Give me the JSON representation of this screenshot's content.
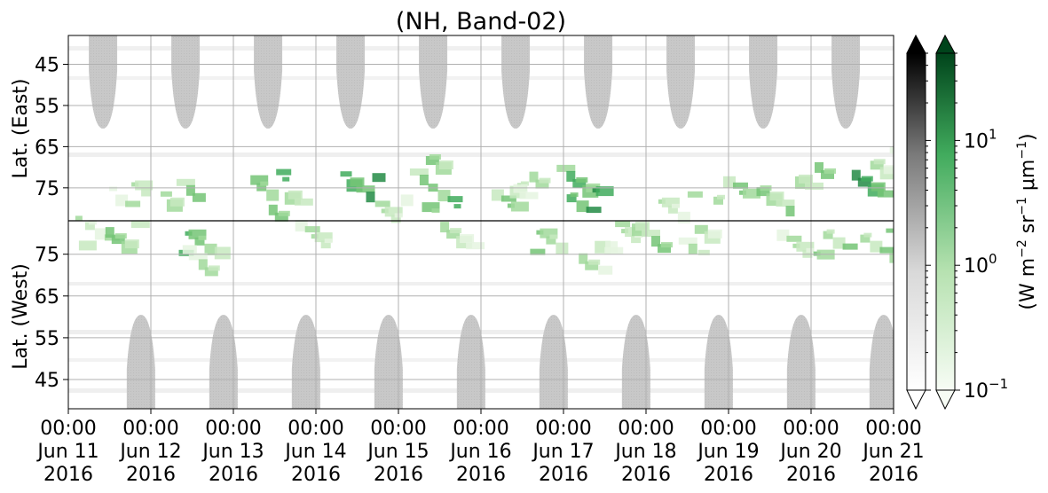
{
  "chart_data": {
    "type": "heatmap",
    "title": "(NH, Band-02)",
    "ylabel_top": "Lat. (East)",
    "ylabel_bottom": "Lat. (West)",
    "y_ticks_top": [
      45,
      55,
      65,
      75
    ],
    "y_ticks_bottom": [
      75,
      65,
      55,
      45
    ],
    "y_range_top": [
      38,
      83
    ],
    "y_range_bottom": [
      83,
      38
    ],
    "x_ticks": [
      {
        "time": "00:00",
        "date": "Jun 11",
        "year": "2016"
      },
      {
        "time": "00:00",
        "date": "Jun 12",
        "year": "2016"
      },
      {
        "time": "00:00",
        "date": "Jun 13",
        "year": "2016"
      },
      {
        "time": "00:00",
        "date": "Jun 14",
        "year": "2016"
      },
      {
        "time": "00:00",
        "date": "Jun 15",
        "year": "2016"
      },
      {
        "time": "00:00",
        "date": "Jun 16",
        "year": "2016"
      },
      {
        "time": "00:00",
        "date": "Jun 17",
        "year": "2016"
      },
      {
        "time": "00:00",
        "date": "Jun 18",
        "year": "2016"
      },
      {
        "time": "00:00",
        "date": "Jun 19",
        "year": "2016"
      },
      {
        "time": "00:00",
        "date": "Jun 20",
        "year": "2016"
      },
      {
        "time": "00:00",
        "date": "Jun 21",
        "year": "2016"
      }
    ],
    "x_range": [
      "2016-06-11 00:00",
      "2016-06-21 00:00"
    ],
    "grid": true,
    "colorbar": {
      "label": "(W m$^{-2}$ sr$^{-1}$ μm$^{-1}$)",
      "label_parts": [
        "(W m",
        "−2",
        " sr",
        "−1",
        " μm",
        "−1",
        ")"
      ],
      "scale": "log",
      "range": [
        0.1,
        50
      ],
      "tick_values": [
        0.1,
        1,
        10
      ],
      "tick_labels": [
        {
          "base": "10",
          "exp": "−1"
        },
        {
          "base": "10",
          "exp": "0"
        },
        {
          "base": "10",
          "exp": "1"
        }
      ],
      "extend": "both",
      "cmaps": [
        "Greys",
        "Greens"
      ]
    },
    "gray_mask_color": "#c8c8c8",
    "divider_color": "#000000",
    "green_accent": "#2f9e4a",
    "series": [
      {
        "values": [
          {
            "day": 0.3,
            "lat": 81,
            "half": "west",
            "v": 2
          },
          {
            "day": 0.6,
            "lat": 80,
            "half": "west",
            "v": 3
          },
          {
            "day": 0.7,
            "lat": 76,
            "half": "east",
            "v": 2
          },
          {
            "day": 1.3,
            "lat": 75,
            "half": "east",
            "v": 3
          },
          {
            "day": 1.5,
            "lat": 79,
            "half": "west",
            "v": 4
          },
          {
            "day": 1.6,
            "lat": 74,
            "half": "west",
            "v": 2
          },
          {
            "day": 2.4,
            "lat": 73,
            "half": "east",
            "v": 4
          },
          {
            "day": 2.6,
            "lat": 78,
            "half": "east",
            "v": 3
          },
          {
            "day": 2.9,
            "lat": 80,
            "half": "west",
            "v": 2
          },
          {
            "day": 3.5,
            "lat": 74,
            "half": "east",
            "v": 6
          },
          {
            "day": 3.9,
            "lat": 79,
            "half": "east",
            "v": 2
          },
          {
            "day": 4.3,
            "lat": 69,
            "half": "east",
            "v": 3
          },
          {
            "day": 4.5,
            "lat": 77,
            "half": "east",
            "v": 4
          },
          {
            "day": 4.7,
            "lat": 80,
            "half": "west",
            "v": 2
          },
          {
            "day": 5.3,
            "lat": 76,
            "half": "east",
            "v": 3
          },
          {
            "day": 5.5,
            "lat": 73,
            "half": "east",
            "v": 2
          },
          {
            "day": 5.8,
            "lat": 78,
            "half": "west",
            "v": 3
          },
          {
            "day": 6.1,
            "lat": 72,
            "half": "east",
            "v": 4
          },
          {
            "day": 6.2,
            "lat": 77,
            "half": "east",
            "v": 5
          },
          {
            "day": 6.4,
            "lat": 75,
            "half": "west",
            "v": 2
          },
          {
            "day": 6.7,
            "lat": 80,
            "half": "west",
            "v": 2
          },
          {
            "day": 7.0,
            "lat": 80,
            "half": "west",
            "v": 3
          },
          {
            "day": 7.3,
            "lat": 78,
            "half": "east",
            "v": 2
          },
          {
            "day": 7.6,
            "lat": 79,
            "half": "west",
            "v": 2
          },
          {
            "day": 8.0,
            "lat": 75,
            "half": "east",
            "v": 3
          },
          {
            "day": 8.5,
            "lat": 77,
            "half": "east",
            "v": 3
          },
          {
            "day": 8.8,
            "lat": 79,
            "half": "west",
            "v": 2
          },
          {
            "day": 9.0,
            "lat": 72,
            "half": "east",
            "v": 3
          },
          {
            "day": 9.2,
            "lat": 78,
            "half": "west",
            "v": 3
          },
          {
            "day": 9.6,
            "lat": 73,
            "half": "east",
            "v": 5
          },
          {
            "day": 9.8,
            "lat": 78,
            "half": "west",
            "v": 3
          },
          {
            "day": 9.9,
            "lat": 68,
            "half": "east",
            "v": 2
          }
        ]
      }
    ]
  }
}
